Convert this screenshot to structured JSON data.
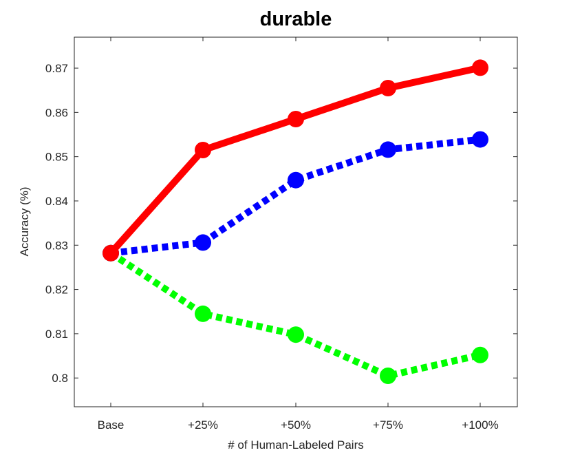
{
  "chart_data": {
    "type": "line",
    "title": "durable",
    "xlabel": "# of Human-Labeled Pairs",
    "ylabel": "Accuracy (%)",
    "categories": [
      "Base",
      "+25%",
      "+50%",
      "+75%",
      "+100%"
    ],
    "ylim": [
      0.7935,
      0.877
    ],
    "yticks": [
      0.8,
      0.81,
      0.82,
      0.83,
      0.84,
      0.85,
      0.86,
      0.87
    ],
    "ytick_labels": [
      "0.8",
      "0.81",
      "0.82",
      "0.83",
      "0.84",
      "0.85",
      "0.86",
      "0.87"
    ],
    "grid": false,
    "legend": "none",
    "series": [
      {
        "color": "#ff0000",
        "line_style": "solid",
        "marker": "circle",
        "values": [
          0.8282,
          0.8515,
          0.8585,
          0.8655,
          0.8701
        ]
      },
      {
        "color": "#0000ff",
        "line_style": "dotted",
        "marker": "circle",
        "values": [
          0.8282,
          0.8306,
          0.8447,
          0.8516,
          0.8539
        ]
      },
      {
        "color": "#00ff00",
        "line_style": "dotted",
        "marker": "circle",
        "values": [
          0.8282,
          0.8145,
          0.8098,
          0.8005,
          0.8052
        ]
      }
    ]
  }
}
